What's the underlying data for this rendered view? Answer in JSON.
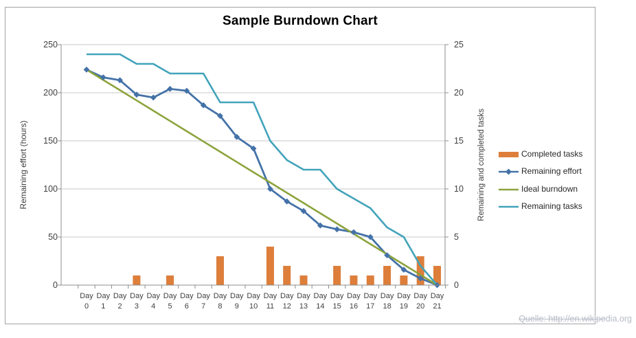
{
  "page": {
    "source_note": {
      "struck": "Quelle: http://en.wikipe",
      "plain": "dia.org"
    }
  },
  "colors": {
    "completed_tasks": "#dd7e3b",
    "remaining_effort": "#4472a8",
    "ideal_burndown": "#8ca33c",
    "remaining_tasks": "#41a3ba",
    "gridline": "#c9c9c9",
    "axis_line": "#8c8c8c",
    "text": "#3f3f3f",
    "frame_border": "#a3a3a3",
    "source_note_text": "#b7bbc6"
  },
  "chart_data": {
    "type": "combo (bar + line), dual axis",
    "title": "Sample Burndown Chart",
    "categories": [
      "Day 0",
      "Day 1",
      "Day 2",
      "Day 3",
      "Day 4",
      "Day 5",
      "Day 6",
      "Day 7",
      "Day 8",
      "Day 9",
      "Day 10",
      "Day 11",
      "Day 12",
      "Day 13",
      "Day 14",
      "Day 15",
      "Day 16",
      "Day 17",
      "Day 18",
      "Day 19",
      "Day 20",
      "Day 21"
    ],
    "left_axis": {
      "label": "Remaining effort (hours)",
      "min": 0,
      "max": 250,
      "tick_step": 50,
      "ticks": [
        250,
        200,
        150,
        100,
        50,
        0
      ]
    },
    "right_axis": {
      "label": "Remaining and completed tasks",
      "min": 0,
      "max": 25,
      "tick_step": 5,
      "ticks": [
        25,
        20,
        15,
        10,
        5,
        0
      ]
    },
    "grid": "horizontal gridlines only",
    "legend_position": "right",
    "legend": [
      "Completed tasks",
      "Remaining effort",
      "Ideal burndown",
      "Remaining tasks"
    ],
    "series": [
      {
        "name": "Completed tasks",
        "type": "bar",
        "axis": "right",
        "color": "#dd7e3b",
        "values": [
          0,
          0,
          0,
          1,
          0,
          1,
          0,
          0,
          3,
          0,
          0,
          4,
          2,
          1,
          0,
          2,
          1,
          1,
          2,
          1,
          3,
          2
        ]
      },
      {
        "name": "Remaining effort",
        "type": "line",
        "marker": "diamond",
        "axis": "left",
        "color": "#4472a8",
        "values": [
          224,
          216,
          213,
          198,
          195,
          204,
          202,
          187,
          176,
          154,
          142,
          100,
          87,
          77,
          62,
          58,
          55,
          50,
          31,
          16,
          7,
          0
        ]
      },
      {
        "name": "Ideal burndown",
        "type": "line",
        "marker": "none",
        "axis": "left",
        "color": "#8ca33c",
        "values": [
          224,
          213.33,
          202.67,
          192,
          181.33,
          170.67,
          160,
          149.33,
          138.67,
          128,
          117.33,
          106.67,
          96,
          85.33,
          74.67,
          64,
          53.33,
          42.67,
          32,
          21.33,
          10.67,
          0
        ]
      },
      {
        "name": "Remaining tasks",
        "type": "line",
        "marker": "none",
        "axis": "right",
        "color": "#41a3ba",
        "values": [
          24,
          24,
          24,
          23,
          23,
          22,
          22,
          22,
          19,
          19,
          19,
          15,
          13,
          12,
          12,
          10,
          9,
          8,
          6,
          5,
          2,
          0
        ]
      }
    ]
  }
}
